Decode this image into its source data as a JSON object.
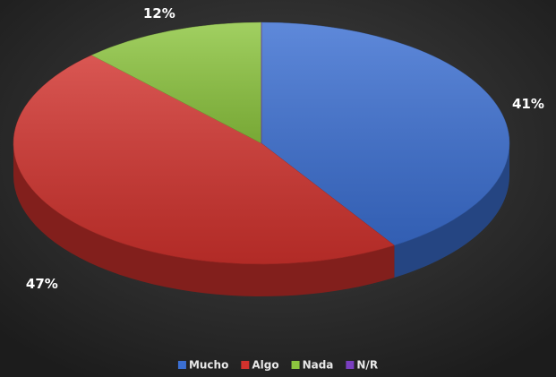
{
  "chart_data": {
    "type": "pie3d",
    "categories": [
      "Mucho",
      "Algo",
      "Nada",
      "N/R"
    ],
    "values": [
      41,
      47,
      12,
      0
    ],
    "value_labels": [
      "41%",
      "47%",
      "12%",
      null
    ],
    "colors": [
      "#3b6fd2",
      "#d1322d",
      "#8dc63f",
      "#7a3fc0"
    ],
    "legend": "bottom"
  }
}
